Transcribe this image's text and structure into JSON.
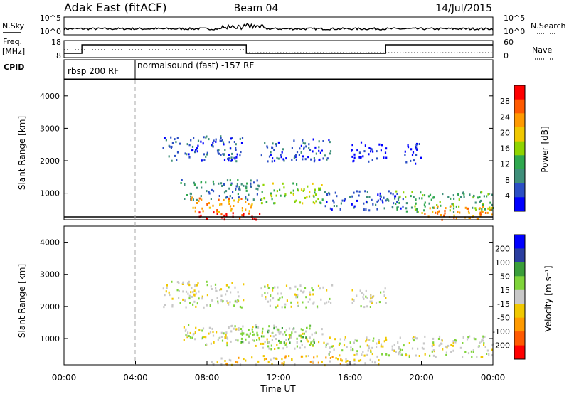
{
  "header": {
    "title": "Adak East (fitACF)",
    "beam": "Beam 04",
    "date": "14/Jul/2015"
  },
  "left_labels": {
    "nsky": "N.Sky",
    "freq": "Freq.",
    "freq_unit": "[MHz]",
    "cpid": "CPID"
  },
  "right_labels": {
    "nsearch": "N.Search",
    "nave": "Nave"
  },
  "colors": {
    "power_scale": [
      "#0000ff",
      "#2b4fc4",
      "#3f8f7a",
      "#2fa84f",
      "#8fd400",
      "#f0c800",
      "#ff9a00",
      "#ff5a00",
      "#ff0000"
    ],
    "velocity_scale": [
      "#ff0000",
      "#ff5a00",
      "#ff9a00",
      "#f0c800",
      "#c8c8c8",
      "#7fd43a",
      "#3a9e3a",
      "#2a3ea0",
      "#0000ff"
    ],
    "gate_line": "#888888"
  },
  "chart_data": [
    {
      "type": "line",
      "name": "noise-panel",
      "left_axis": {
        "ticks": [
          "10^5",
          "10^0"
        ]
      },
      "right_axis": {
        "ticks": [
          "10^5",
          "10^0"
        ]
      }
    },
    {
      "type": "line",
      "name": "frequency-nave-panel",
      "left_axis": {
        "ticks": [
          "18",
          "8"
        ]
      },
      "right_axis": {
        "ticks": [
          "60",
          "0"
        ]
      },
      "freq_steps": [
        {
          "x_hour": 0,
          "value": "low"
        },
        {
          "x_hour": 1,
          "value": "high"
        },
        {
          "x_hour": 4,
          "value": "high"
        },
        {
          "x_hour": 10.2,
          "value": "low"
        },
        {
          "x_hour": 18,
          "value": "high"
        },
        {
          "x_hour": 24,
          "value": "high"
        }
      ]
    },
    {
      "type": "table",
      "name": "cpid-panel",
      "segments": [
        {
          "start_hour": 0,
          "end_hour": 4,
          "label": "rbsp 200 RF"
        },
        {
          "start_hour": 4,
          "end_hour": 24,
          "label": "normalsound (fast) -157 RF"
        }
      ]
    },
    {
      "type": "heatmap",
      "name": "power-panel",
      "ylabel": "Slant Range [km]",
      "ylim": [
        180,
        4500
      ],
      "yticks": [
        "1000",
        "2000",
        "3000",
        "4000"
      ],
      "colorbar_label": "Power [dB]",
      "colorbar_ticks": [
        "4",
        "8",
        "12",
        "16",
        "20",
        "24",
        "28"
      ],
      "regions": [
        {
          "t0": 6.5,
          "t1": 11,
          "r0": 800,
          "r1": 1450,
          "level": 2
        },
        {
          "t0": 7,
          "t1": 10.5,
          "r0": 450,
          "r1": 900,
          "level": 6
        },
        {
          "t0": 7.5,
          "t1": 11,
          "r0": 200,
          "r1": 450,
          "level": 8
        },
        {
          "t0": 11,
          "t1": 14.5,
          "r0": 700,
          "r1": 1350,
          "level": 4
        },
        {
          "t0": 14.5,
          "t1": 19,
          "r0": 500,
          "r1": 1100,
          "level": 1
        },
        {
          "t0": 18.5,
          "t1": 24,
          "r0": 450,
          "r1": 1100,
          "level": 3
        },
        {
          "t0": 20,
          "t1": 24,
          "r0": 200,
          "r1": 650,
          "level": 6
        },
        {
          "t0": 5.5,
          "t1": 10,
          "r0": 2000,
          "r1": 2800,
          "level": 1
        },
        {
          "t0": 11,
          "t1": 15,
          "r0": 2000,
          "r1": 2700,
          "level": 1
        },
        {
          "t0": 16,
          "t1": 18,
          "r0": 2000,
          "r1": 2600,
          "level": 0
        },
        {
          "t0": 19,
          "t1": 20,
          "r0": 1900,
          "r1": 2600,
          "level": 0
        }
      ]
    },
    {
      "type": "heatmap",
      "name": "velocity-panel",
      "ylabel": "Slant Range [km]",
      "ylim": [
        180,
        4500
      ],
      "yticks": [
        "1000",
        "2000",
        "3000",
        "4000"
      ],
      "xlabel": "Time UT",
      "xticks": [
        "00:00",
        "04:00",
        "08:00",
        "12:00",
        "16:00",
        "20:00",
        "00:00"
      ],
      "colorbar_label": "Velocity [m s⁻¹]",
      "colorbar_ticks": [
        "200",
        "100",
        "50",
        "15",
        "-15",
        "-50",
        "-100",
        "-200"
      ],
      "regions": [
        {
          "t0": 6.5,
          "t1": 11,
          "r0": 800,
          "r1": 1450,
          "level": 4
        },
        {
          "t0": 9.5,
          "t1": 14,
          "r0": 900,
          "r1": 1450,
          "level": 5
        },
        {
          "t0": 11,
          "t1": 14.5,
          "r0": 700,
          "r1": 1350,
          "level": 4
        },
        {
          "t0": 14.5,
          "t1": 19,
          "r0": 500,
          "r1": 1100,
          "level": 4
        },
        {
          "t0": 18.5,
          "t1": 24,
          "r0": 450,
          "r1": 1100,
          "level": 4
        },
        {
          "t0": 8,
          "t1": 11,
          "r0": 200,
          "r1": 450,
          "level": 3
        },
        {
          "t0": 11,
          "t1": 18,
          "r0": 200,
          "r1": 500,
          "level": 3
        },
        {
          "t0": 5.5,
          "t1": 10,
          "r0": 2000,
          "r1": 2800,
          "level": 4
        },
        {
          "t0": 11,
          "t1": 15,
          "r0": 2000,
          "r1": 2700,
          "level": 4
        },
        {
          "t0": 16,
          "t1": 18,
          "r0": 2000,
          "r1": 2600,
          "level": 4
        }
      ]
    }
  ]
}
